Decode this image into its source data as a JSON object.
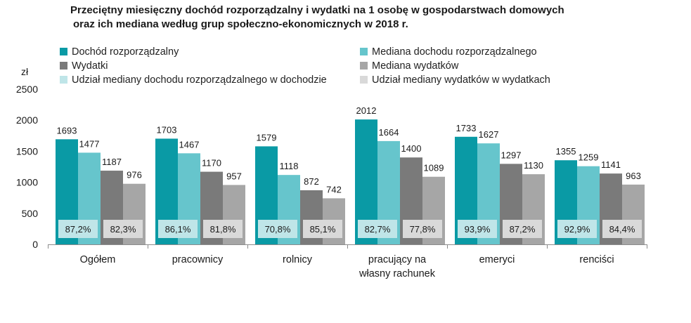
{
  "chart_data": {
    "type": "bar",
    "title_lines": [
      "Przeciętny miesięczny dochód rozporządzalny i wydatki na 1 osobę w gospodarstwach domowych",
      "oraz ich mediana według grup społeczno-ekonomicznych w 2018 r."
    ],
    "ylabel": "zł",
    "ylim": [
      0,
      2500
    ],
    "yticks": [
      0,
      500,
      1000,
      1500,
      2000,
      2500
    ],
    "categories": [
      [
        "Ogółem"
      ],
      [
        "pracownicy"
      ],
      [
        "rolnicy"
      ],
      [
        "pracujący na",
        "własny rachunek"
      ],
      [
        "emeryci"
      ],
      [
        "renciści"
      ]
    ],
    "series": [
      {
        "name": "Dochód rozporządzalny",
        "color": "#0a9aa5",
        "values": [
          1693,
          1703,
          1579,
          2012,
          1733,
          1355
        ]
      },
      {
        "name": "Mediana dochodu rozporządzalnego",
        "color": "#66c5cc",
        "values": [
          1477,
          1467,
          1118,
          1664,
          1627,
          1259
        ]
      },
      {
        "name": "Wydatki",
        "color": "#7a7a7a",
        "values": [
          1187,
          1170,
          872,
          1400,
          1297,
          1141
        ]
      },
      {
        "name": "Mediana wydatków",
        "color": "#a6a6a6",
        "values": [
          976,
          957,
          742,
          1089,
          1130,
          963
        ]
      }
    ],
    "shares": [
      {
        "name": "Udział mediany dochodu rozporządzalnego w dochodzie",
        "color": "#bfe5e8",
        "values": [
          "87,2%",
          "86,1%",
          "70,8%",
          "82,7%",
          "93,9%",
          "92,9%"
        ]
      },
      {
        "name": "Udział mediany wydatków w wydatkach",
        "color": "#d9d9d9",
        "values": [
          "82,3%",
          "81,8%",
          "85,1%",
          "77,8%",
          "87,2%",
          "84,4%"
        ]
      }
    ],
    "grid": false,
    "legend_position": "top"
  }
}
